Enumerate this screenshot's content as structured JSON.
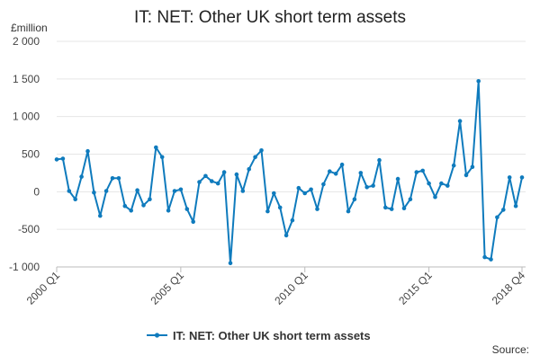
{
  "chart_data": {
    "type": "line",
    "title": "IT: NET: Other UK short term assets",
    "ylabel": "£million",
    "ylim": [
      -1000,
      2000
    ],
    "yticks": [
      -1000,
      -500,
      0,
      500,
      1000,
      1500,
      2000
    ],
    "ytick_labels": [
      "-1 000",
      "-500",
      "0",
      "500",
      "1 000",
      "1 500",
      "2 000"
    ],
    "xtick_labels": [
      "2000 Q1",
      "2005 Q1",
      "2010 Q1",
      "2015 Q1",
      "2018 Q4"
    ],
    "xtick_index": [
      0,
      20,
      40,
      60,
      75
    ],
    "grid": true,
    "legend_position": "bottom",
    "series": [
      {
        "name": "IT: NET: Other UK short term assets",
        "color": "#0f7bbd",
        "x": [
          "2000 Q1",
          "2000 Q2",
          "2000 Q3",
          "2000 Q4",
          "2001 Q1",
          "2001 Q2",
          "2001 Q3",
          "2001 Q4",
          "2002 Q1",
          "2002 Q2",
          "2002 Q3",
          "2002 Q4",
          "2003 Q1",
          "2003 Q2",
          "2003 Q3",
          "2003 Q4",
          "2004 Q1",
          "2004 Q2",
          "2004 Q3",
          "2004 Q4",
          "2005 Q1",
          "2005 Q2",
          "2005 Q3",
          "2005 Q4",
          "2006 Q1",
          "2006 Q2",
          "2006 Q3",
          "2006 Q4",
          "2007 Q1",
          "2007 Q2",
          "2007 Q3",
          "2007 Q4",
          "2008 Q1",
          "2008 Q2",
          "2008 Q3",
          "2008 Q4",
          "2009 Q1",
          "2009 Q2",
          "2009 Q3",
          "2009 Q4",
          "2010 Q1",
          "2010 Q2",
          "2010 Q3",
          "2010 Q4",
          "2011 Q1",
          "2011 Q2",
          "2011 Q3",
          "2011 Q4",
          "2012 Q1",
          "2012 Q2",
          "2012 Q3",
          "2012 Q4",
          "2013 Q1",
          "2013 Q2",
          "2013 Q3",
          "2013 Q4",
          "2014 Q1",
          "2014 Q2",
          "2014 Q3",
          "2014 Q4",
          "2015 Q1",
          "2015 Q2",
          "2015 Q3",
          "2015 Q4",
          "2016 Q1",
          "2016 Q2",
          "2016 Q3",
          "2016 Q4",
          "2017 Q1",
          "2017 Q2",
          "2017 Q3",
          "2017 Q4",
          "2018 Q1",
          "2018 Q2",
          "2018 Q3",
          "2018 Q4"
        ],
        "values": [
          430,
          440,
          10,
          -100,
          200,
          540,
          -10,
          -320,
          10,
          180,
          180,
          -190,
          -250,
          20,
          -180,
          -100,
          590,
          460,
          -250,
          10,
          30,
          -230,
          -400,
          130,
          210,
          140,
          110,
          260,
          -950,
          230,
          10,
          300,
          460,
          550,
          -260,
          -20,
          -210,
          -580,
          -380,
          50,
          -20,
          30,
          -230,
          100,
          270,
          240,
          360,
          -260,
          -100,
          250,
          60,
          80,
          420,
          -210,
          -230,
          170,
          -220,
          -100,
          260,
          280,
          110,
          -70,
          110,
          80,
          350,
          940,
          220,
          330,
          1470,
          -870,
          -900,
          -340,
          -240,
          190,
          -190,
          190
        ]
      }
    ]
  },
  "labels": {
    "source": "Source:"
  }
}
